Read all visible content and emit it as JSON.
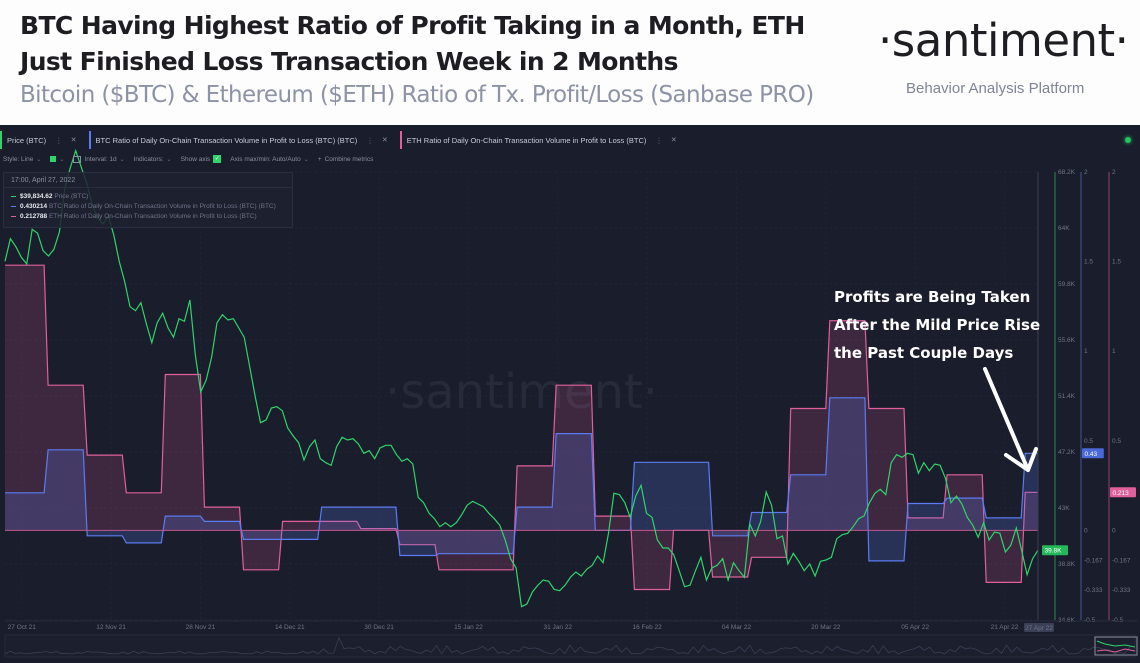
{
  "header": {
    "title_line1": "BTC Having Highest Ratio of Profit Taking in a Month, ETH",
    "title_line2": "Just Finished Loss Transaction Week in 2 Months",
    "subtitle": "Bitcoin ($BTC) & Ethereum ($ETH) Ratio of Tx. Profit/Loss (Sanbase PRO)",
    "logo": "·santiment·",
    "logo_tagline": "Behavior Analysis Platform"
  },
  "metric_tabs": [
    {
      "label": "Price (BTC)",
      "color": "#2fd56b"
    },
    {
      "label": "BTC Ratio of Daily On-Chain Transaction Volume in Profit to Loss (BTC) (BTC)",
      "color": "#5b7cf0"
    },
    {
      "label": "ETH Ratio of Daily On-Chain Transaction Volume in Profit to Loss (BTC)",
      "color": "#e0609c"
    }
  ],
  "settings": {
    "style": "Style: Line",
    "interval": "Interval: 1d",
    "indicators": "Indicators:",
    "show_axis": "Show axis",
    "axis_maxmin": "Axis max/min: Auto/Auto",
    "combine": "Combine metrics"
  },
  "tooltip": {
    "date": "17:00, April 27, 2022",
    "rows": [
      {
        "value": "$39,834.62",
        "label": "Price (BTC)",
        "color": "#2fd56b"
      },
      {
        "value": "0.430214",
        "label": "BTC Ratio of Daily On-Chain Transaction Volume in Profit to Loss (BTC) (BTC)",
        "color": "#5b7cf0"
      },
      {
        "value": "0.212788",
        "label": "ETH Ratio of Daily On-Chain Transaction Volume in Profit to Loss (BTC)",
        "color": "#e0609c"
      }
    ]
  },
  "annotation": {
    "lines": [
      "Profits are Being Taken",
      "After the Mild Price Rise",
      "the Past Couple Days"
    ]
  },
  "watermark": "·santiment·",
  "chart_data": {
    "type": "line",
    "title": "Bitcoin ($BTC) & Ethereum ($ETH) Ratio of Tx. Profit/Loss",
    "x_start": "24 Oct 21",
    "x_end": "27 Apr 22",
    "x_tick_labels": [
      "27 Oct 21",
      "12 Nov 21",
      "28 Nov 21",
      "14 Dec 21",
      "30 Dec 21",
      "15 Jan 22",
      "31 Jan 22",
      "16 Feb 22",
      "04 Mar 22",
      "20 Mar 22",
      "05 Apr 22",
      "21 Apr 22"
    ],
    "x_tick_days": [
      3,
      19,
      35,
      51,
      67,
      83,
      99,
      115,
      131,
      147,
      163,
      179
    ],
    "cursor_label": "27 Apr 22",
    "cursor_day": 185,
    "price_axis": {
      "ticks": [
        "68.2K",
        "64K",
        "59.8K",
        "55.6K",
        "51.4K",
        "47.2K",
        "43K",
        "38.8K",
        "34.6K"
      ],
      "tick_values": [
        68200,
        64000,
        59800,
        55600,
        51400,
        47200,
        43000,
        38800,
        34600
      ],
      "range": [
        34600,
        68200
      ],
      "current_label": "39.8K",
      "color": "#2fd56b"
    },
    "btc_ratio_axis": {
      "ticks": [
        "2",
        "1.5",
        "1",
        "0.5",
        "0",
        "-0.167",
        "-0.333",
        "-0.5"
      ],
      "tick_values": [
        2,
        1.5,
        1,
        0.5,
        0,
        -0.167,
        -0.333,
        -0.5
      ],
      "range": [
        -0.5,
        2
      ],
      "current_label": "0.43",
      "color": "#5b7cf0"
    },
    "eth_ratio_axis": {
      "ticks": [
        "2",
        "1.5",
        "1",
        "0.5",
        "0",
        "-0.167",
        "-0.333",
        "-0.5"
      ],
      "tick_values": [
        2,
        1.5,
        1,
        0.5,
        0,
        -0.167,
        -0.333,
        -0.5
      ],
      "range": [
        -0.5,
        2
      ],
      "current_label": "0.213",
      "color": "#e0609c"
    },
    "series": [
      {
        "name": "Price (BTC)",
        "axis": "price",
        "step_days": 1,
        "values": [
          61500,
          63200,
          62600,
          61800,
          61300,
          63900,
          63600,
          62300,
          61900,
          62400,
          63700,
          67000,
          68500,
          69800,
          68600,
          67400,
          65800,
          64800,
          64300,
          64900,
          63500,
          61500,
          60000,
          58100,
          57800,
          58400,
          56800,
          55400,
          56900,
          57600,
          56500,
          55800,
          57200,
          57000,
          58600,
          54500,
          51700,
          52600,
          54300,
          56900,
          57500,
          57100,
          57200,
          56500,
          55800,
          53600,
          51400,
          49400,
          49600,
          50500,
          50600,
          50300,
          49000,
          48400,
          47900,
          46600,
          47600,
          48100,
          46700,
          46400,
          46200,
          47600,
          48300,
          48100,
          48200,
          47800,
          47100,
          47300,
          46700,
          47500,
          47700,
          47700,
          47000,
          46500,
          46700,
          46300,
          43800,
          43400,
          42600,
          42200,
          41600,
          41900,
          41600,
          41900,
          42500,
          43200,
          43500,
          43300,
          43100,
          42600,
          42200,
          41700,
          40600,
          39200,
          38500,
          35600,
          35800,
          36700,
          37200,
          37600,
          37500,
          36900,
          36800,
          37200,
          37800,
          38200,
          37900,
          38400,
          38700,
          39400,
          38900,
          41100,
          44100,
          44000,
          43400,
          42300,
          43900,
          44700,
          42600,
          42300,
          40600,
          40000,
          40000,
          39500,
          38300,
          37100,
          37200,
          38300,
          39300,
          37600,
          38500,
          38700,
          39200,
          37600,
          38900,
          38300,
          37800,
          41800,
          40900,
          42000,
          44200,
          43200,
          40700,
          40900,
          38800,
          39600,
          39000,
          38300,
          38800,
          37900,
          39000,
          39100,
          39300,
          40700,
          41000,
          41100,
          41600,
          42200,
          42400,
          43400,
          44100,
          44400,
          44000,
          46400,
          47000,
          46800,
          47100,
          47000,
          45600,
          46400,
          45800,
          46300,
          46200,
          45200,
          43400,
          43900,
          43300,
          42300,
          41700,
          40800,
          41900,
          40600,
          41200,
          41100,
          39700,
          40200,
          41500,
          39800,
          38000,
          39200,
          39834.62
        ]
      },
      {
        "name": "BTC Ratio of Daily On-Chain Transaction Volume in Profit to Loss (BTC) (BTC)",
        "axis": "btc_ratio",
        "step_days": 7,
        "values": [
          0.21,
          0.45,
          -0.03,
          -0.07,
          0.08,
          0.05,
          -0.05,
          -0.05,
          0.13,
          0.13,
          -0.14,
          -0.13,
          -0.13,
          0.13,
          0.54,
          0.0,
          0.38,
          0.38,
          -0.03,
          0.1,
          0.31,
          0.74,
          -0.17,
          0.15,
          0.18,
          0.07,
          0.430214
        ]
      },
      {
        "name": "ETH Ratio of Daily On-Chain Transaction Volume in Profit to Loss (BTC)",
        "axis": "eth_ratio",
        "step_days": 7,
        "values": [
          1.48,
          0.81,
          0.42,
          0.21,
          0.87,
          0.13,
          -0.22,
          0.05,
          0.05,
          0.01,
          -0.08,
          -0.22,
          -0.22,
          0.36,
          0.81,
          0.08,
          -0.33,
          0.0,
          -0.26,
          -0.15,
          0.68,
          1.17,
          0.68,
          0.07,
          0.31,
          -0.29,
          0.212788
        ]
      }
    ],
    "grid": true,
    "legend": "top-left"
  }
}
